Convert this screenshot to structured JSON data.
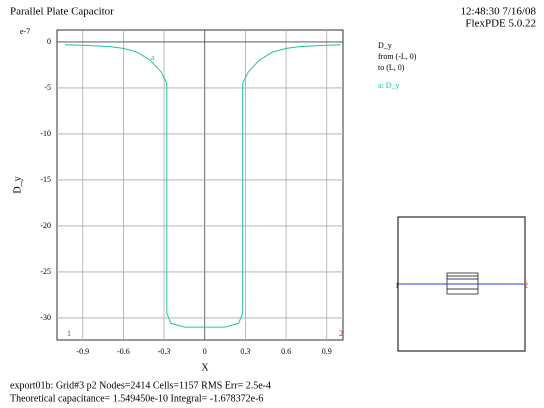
{
  "header": {
    "title": "Parallel Plate Capacitor",
    "time": "12:48:30 7/16/08",
    "version": "FlexPDE 5.0.22"
  },
  "chart_data": {
    "type": "line",
    "y_label": "D_y",
    "x_label": "X",
    "scale_label": "e-7",
    "legend_title": "D_y",
    "legend_from": "from (-L, 0)",
    "legend_to": "to (L, 0)",
    "start_label": "1",
    "end_label": "2",
    "curve_label": "a",
    "x": [
      -1.03,
      -0.9,
      -0.7,
      -0.6,
      -0.5,
      -0.4,
      -0.32,
      -0.28,
      -0.28,
      -0.25,
      -0.15,
      0,
      0.15,
      0.25,
      0.28,
      0.28,
      0.32,
      0.4,
      0.5,
      0.6,
      0.7,
      0.9,
      1.0
    ],
    "series": [
      {
        "name": "a: D_y",
        "color": "#22c4a4",
        "values": [
          -0.3,
          -0.35,
          -0.5,
          -0.7,
          -1.1,
          -2.0,
          -3.3,
          -4.5,
          -29.5,
          -30.6,
          -31,
          -31,
          -31,
          -30.6,
          -29.5,
          -4.5,
          -3.3,
          -2.0,
          -1.1,
          -0.7,
          -0.5,
          -0.35,
          -0.3
        ]
      }
    ],
    "xlim": [
      -1.09,
      1.02
    ],
    "ylim": [
      -32.4,
      1.3
    ],
    "xticks": [
      -0.9,
      -0.6,
      -0.3,
      0,
      0.3,
      0.6,
      0.9
    ],
    "yticks": [
      0,
      -5,
      -10,
      -15,
      -20,
      -25,
      -30
    ],
    "grid": true
  },
  "inset": {
    "start_label": "1",
    "end_label": "2"
  },
  "footer": [
    "export01b:  Grid#3  p2  Nodes=2414 Cells=1157 RMS Err= 2.5e-4",
    "Theoretical capacitance=  1.549450e-10  Integral= -1.678372e-6"
  ]
}
